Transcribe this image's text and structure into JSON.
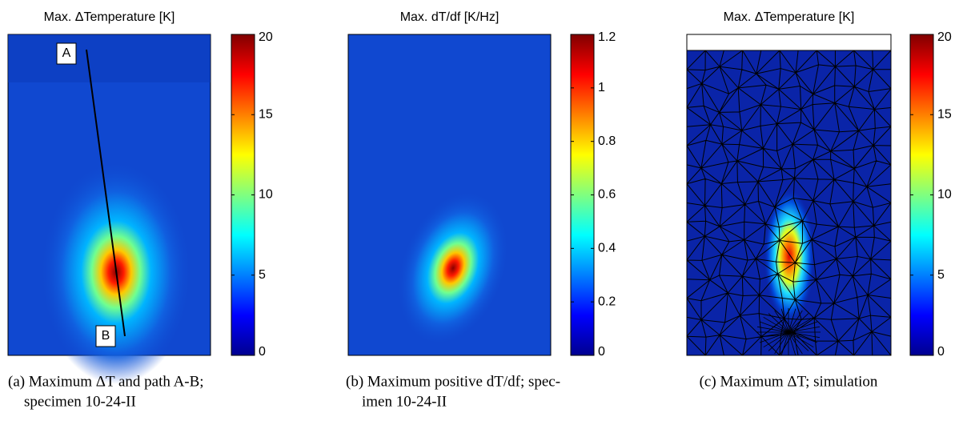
{
  "chart_data": [
    {
      "type": "heatmap",
      "title": "Max. ΔTemperature [K]",
      "clim": [
        0,
        20
      ],
      "cticks": [
        0,
        5,
        10,
        15,
        20
      ],
      "annotations": [
        "A",
        "B"
      ],
      "caption": [
        "(a) Maximum ΔT and path A-B;",
        "specimen 10-24-II"
      ]
    },
    {
      "type": "heatmap",
      "title": "Max. dT/df [K/Hz]",
      "clim": [
        0,
        1.2
      ],
      "cticks": [
        0,
        0.2,
        0.4,
        0.6,
        0.8,
        1,
        1.2
      ],
      "caption": [
        "(b) Maximum positive dT/df; spec-",
        "imen 10-24-II"
      ]
    },
    {
      "type": "heatmap",
      "title": "Max. ΔTemperature [K]",
      "clim": [
        0,
        20
      ],
      "cticks": [
        0,
        5,
        10,
        15,
        20
      ],
      "caption": [
        "(c) Maximum ΔT; simulation"
      ]
    }
  ]
}
